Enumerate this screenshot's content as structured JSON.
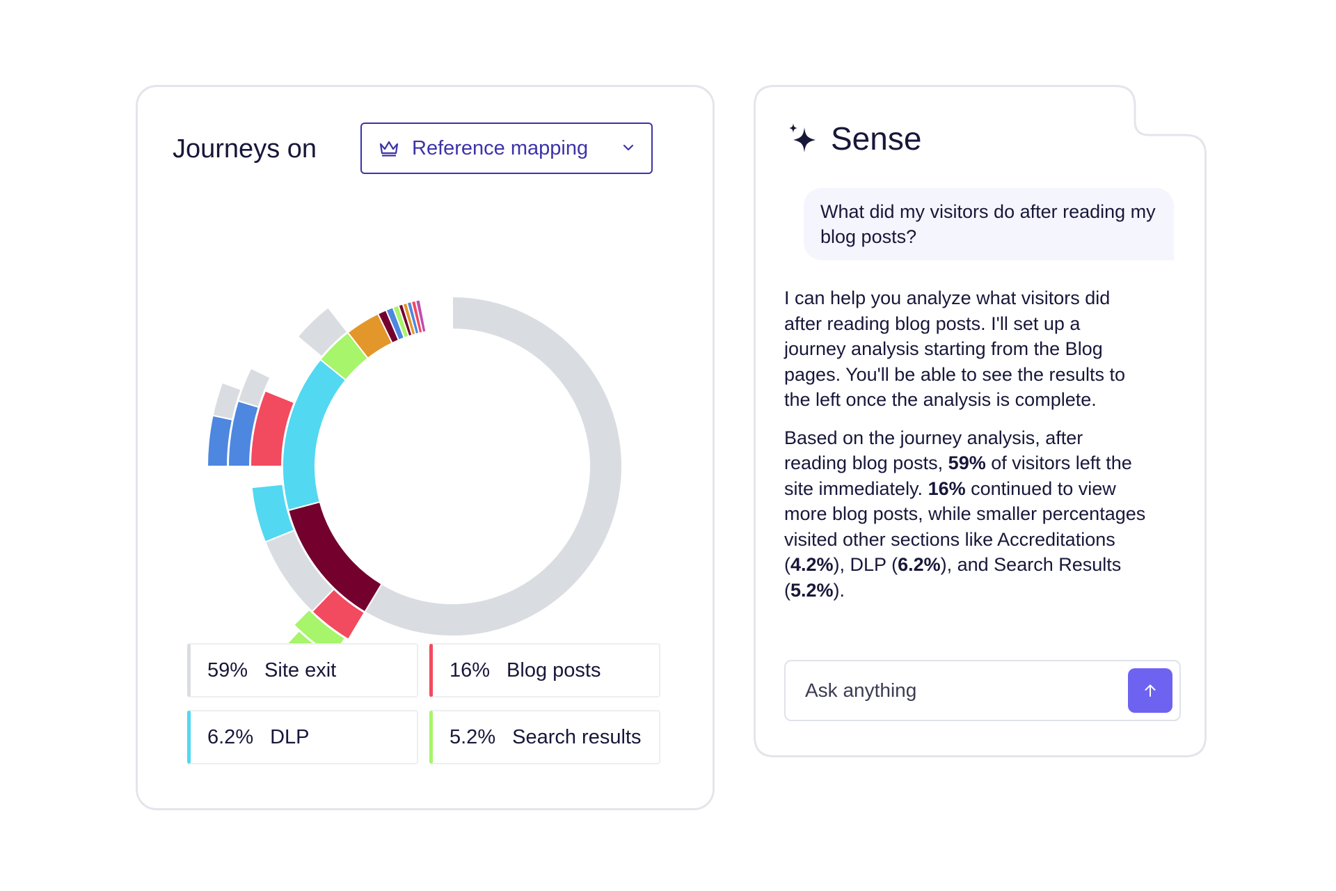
{
  "journeys": {
    "title": "Journeys on",
    "dropdown": {
      "label": "Reference mapping",
      "icon": "crown-icon"
    },
    "colors": {
      "site_exit": "#d9dde1",
      "blog_posts": "#f24a5e",
      "dlp": "#52d8f0",
      "search_results": "#a6f56a",
      "maroon": "#74002e",
      "blue": "#4d87e0",
      "orange": "#e3962a"
    },
    "legend": [
      {
        "pct": "59%",
        "label": "Site exit",
        "color": "#d9dde1"
      },
      {
        "pct": "16%",
        "label": "Blog posts",
        "color": "#f24a5e"
      },
      {
        "pct": "6.2%",
        "label": "DLP",
        "color": "#52d8f0"
      },
      {
        "pct": "5.2%",
        "label": "Search results",
        "color": "#a6f56a"
      }
    ]
  },
  "sense": {
    "title": "Sense",
    "icon": "sparkle-icon",
    "user_message": "What did my visitors do after reading my blog posts?",
    "reply_intro": "I can help you analyze what visitors did after reading blog posts. I'll set up a journey analysis starting from the Blog pages. You'll be able to see the results to the left once the analysis is complete.",
    "reply2": {
      "t1": "Based on the journey analysis, after reading blog posts, ",
      "b1": "59%",
      "t2": " of visitors left the site immediately. ",
      "b2": "16%",
      "t3": " continued to view more blog posts, while smaller percentages visited other sections like Accreditations (",
      "b3": "4.2%",
      "t4": "), DLP (",
      "b4": "6.2%",
      "t5": "), and Search Results (",
      "b5": "5.2%",
      "t6": ")."
    },
    "input": {
      "placeholder": "Ask anything",
      "value": ""
    },
    "send_icon": "arrow-up-icon",
    "accent": "#6e63f1"
  }
}
